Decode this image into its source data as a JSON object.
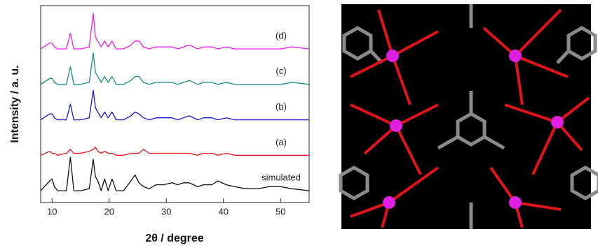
{
  "chart_data": {
    "type": "line",
    "x_label": "2θ / degree",
    "y_label": "Intensity / a. u.",
    "x": [
      8,
      9.6,
      10,
      10.4,
      11,
      12.5,
      13.2,
      13.8,
      15,
      16.5,
      17.2,
      17.6,
      18,
      18.6,
      19.2,
      19.8,
      20.5,
      21.2,
      22.5,
      23.8,
      24.5,
      25.2,
      26,
      27,
      28.2,
      29.5,
      31,
      32,
      33,
      34,
      35.5,
      36.5,
      38,
      39,
      40.5,
      42,
      44,
      46,
      48,
      50,
      52,
      55
    ],
    "xlim": [
      8,
      55
    ],
    "xticks": [
      10,
      20,
      30,
      40,
      50
    ],
    "ylim": [
      0,
      100
    ],
    "series": [
      {
        "name": "simulated",
        "color": "#111111",
        "values": [
          6,
          11,
          12,
          8,
          6,
          6,
          23,
          6,
          6,
          7,
          22,
          13,
          11,
          6,
          12,
          6,
          12,
          6,
          6,
          11,
          14,
          10,
          8,
          7,
          9,
          9,
          10,
          9,
          10,
          10,
          8,
          9,
          9,
          11,
          9,
          8,
          7,
          7,
          8,
          8,
          7,
          6
        ]
      },
      {
        "name": "(a)",
        "color": "#e8141a",
        "values": [
          24,
          26,
          25,
          25,
          24,
          25,
          27,
          25,
          25,
          26,
          27,
          28,
          26,
          25,
          26,
          25,
          25,
          24,
          24,
          25,
          25,
          25,
          27,
          25,
          25,
          25,
          25,
          25,
          25,
          25,
          24,
          25,
          25,
          24,
          25,
          24,
          24,
          24,
          24,
          24,
          24,
          24
        ]
      },
      {
        "name": "(b)",
        "color": "#1515d0",
        "values": [
          42,
          45,
          45,
          43,
          42,
          42,
          50,
          42,
          42,
          43,
          57,
          48,
          46,
          43,
          46,
          43,
          46,
          42,
          42,
          44,
          46,
          45,
          43,
          42,
          43,
          43,
          43,
          42,
          43,
          44,
          42,
          43,
          43,
          42,
          43,
          42,
          42,
          42,
          42,
          42,
          42,
          42
        ]
      },
      {
        "name": "(c)",
        "color": "#1a8a84",
        "values": [
          60,
          63,
          63,
          61,
          60,
          60,
          69,
          60,
          60,
          61,
          76,
          66,
          64,
          61,
          64,
          61,
          64,
          60,
          60,
          62,
          64,
          64,
          61,
          60,
          61,
          61,
          61,
          60,
          61,
          62,
          60,
          61,
          61,
          60,
          61,
          60,
          60,
          60,
          60,
          60,
          61,
          60
        ]
      },
      {
        "name": "(d)",
        "color": "#e81ee8",
        "values": [
          78,
          81,
          81,
          79,
          78,
          78,
          86,
          78,
          78,
          79,
          96,
          84,
          82,
          79,
          82,
          79,
          82,
          78,
          78,
          80,
          82,
          82,
          79,
          78,
          79,
          79,
          79,
          78,
          79,
          80,
          78,
          79,
          79,
          78,
          79,
          78,
          78,
          78,
          78,
          78,
          79,
          78
        ]
      }
    ]
  }
}
